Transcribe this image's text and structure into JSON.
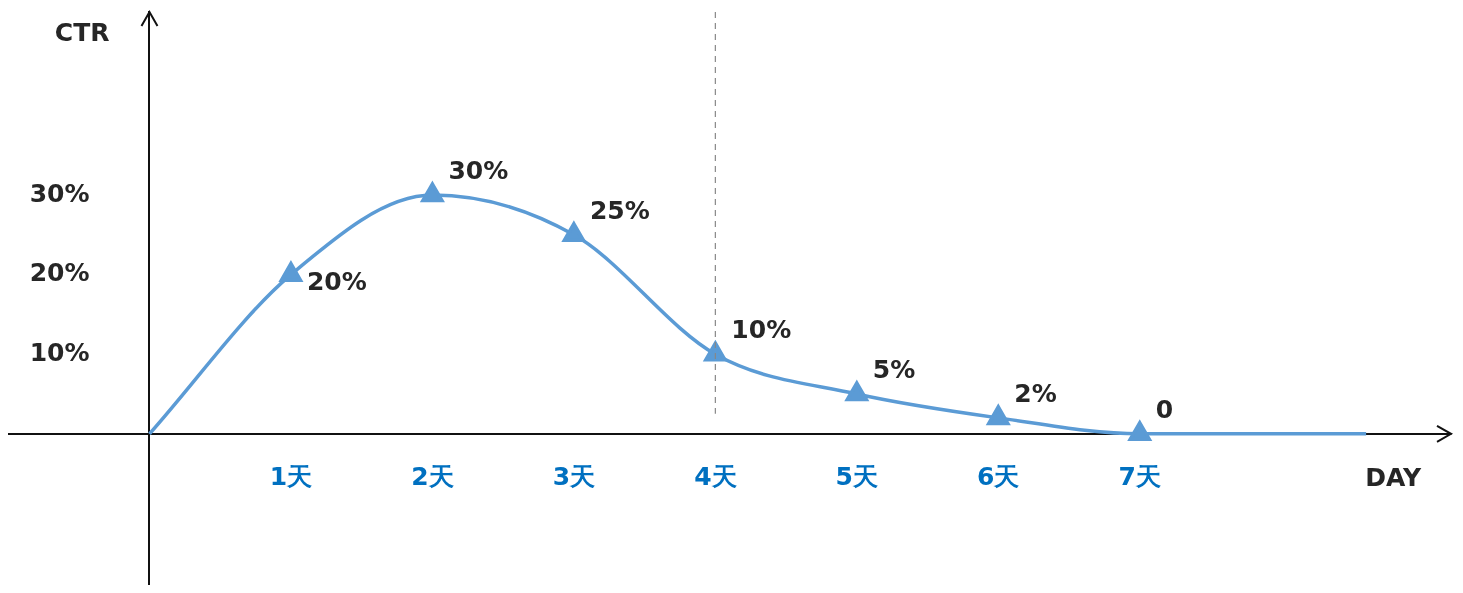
{
  "chart_data": {
    "type": "line",
    "xlabel": "DAY",
    "ylabel": "CTR",
    "xlim": [
      -1,
      9.2
    ],
    "ylim": [
      -19,
      53
    ],
    "xticks": [
      {
        "value": 1,
        "label": "1天"
      },
      {
        "value": 2,
        "label": "2天"
      },
      {
        "value": 3,
        "label": "3天"
      },
      {
        "value": 4,
        "label": "4天"
      },
      {
        "value": 5,
        "label": "5天"
      },
      {
        "value": 6,
        "label": "6天"
      },
      {
        "value": 7,
        "label": "7天"
      }
    ],
    "yticks": [
      {
        "value": 10,
        "label": "10%"
      },
      {
        "value": 20,
        "label": "20%"
      },
      {
        "value": 30,
        "label": "30%"
      }
    ],
    "series": [
      {
        "color": "#5b9bd5",
        "x": [
          0,
          1,
          2,
          3,
          4,
          5,
          6,
          7,
          8.6
        ],
        "values": [
          0,
          20,
          30,
          25,
          10,
          5,
          2,
          0,
          0
        ],
        "value_labels": [
          null,
          "20%",
          "30%",
          "25%",
          "10%",
          "5%",
          "2%",
          "0",
          null
        ]
      }
    ],
    "marker": "triangle",
    "line_style": "solid",
    "grid": false,
    "legend": false,
    "ref_lines": [
      {
        "axis": "x",
        "value": 4,
        "color": "#888888",
        "line_style": "dashed"
      }
    ]
  }
}
